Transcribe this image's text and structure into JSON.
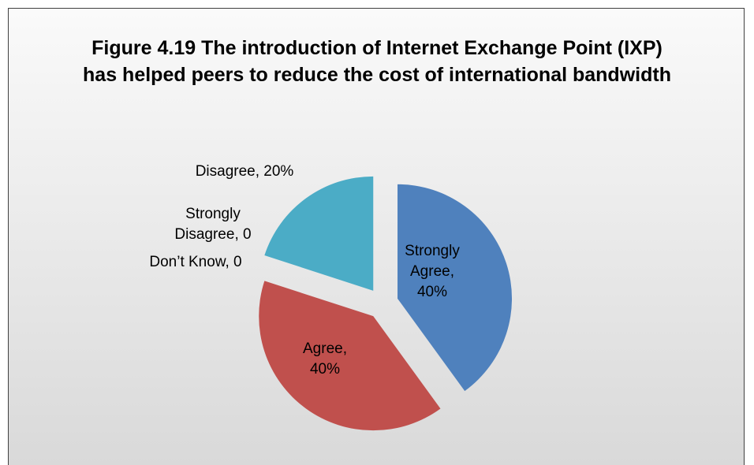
{
  "chart_data": {
    "type": "pie",
    "title": "Figure 4.19 The introduction of Internet Exchange Point (IXP) has helped peers to reduce the cost of international bandwidth",
    "values": [
      40,
      40,
      0,
      0,
      20
    ],
    "value_labels": [
      "Strongly Agree, 40%",
      "Agree, 40%",
      "Don’t Know, 0",
      "Strongly Disagree, 0",
      "Disagree, 20%"
    ],
    "colors": [
      "#4f81bd",
      "#c0504d",
      "#9bbb59",
      "#8064a2",
      "#4bacc6"
    ]
  }
}
